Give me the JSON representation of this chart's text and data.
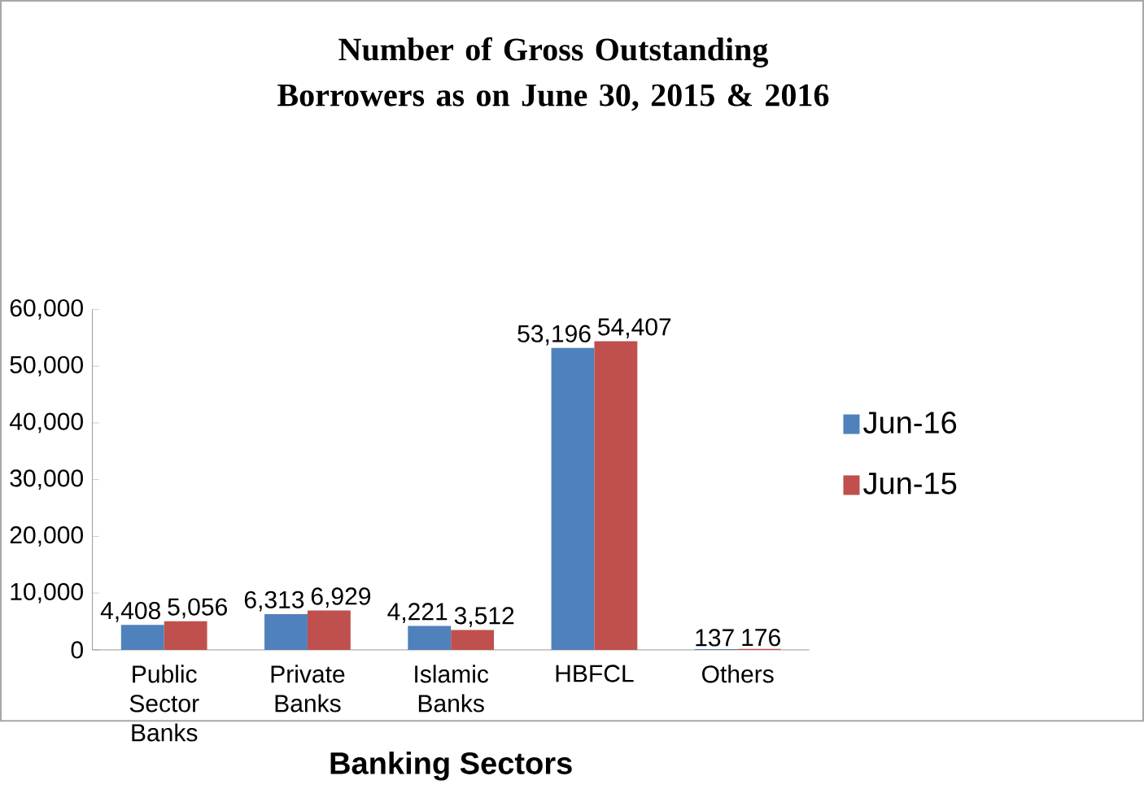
{
  "chart_data": {
    "type": "bar",
    "title": "Number of Gross Outstanding Borrowers as on June 30, 2015 & 2016",
    "xlabel": "Banking Sectors",
    "categories": [
      "Public Sector Banks",
      "Private Banks",
      "Islamic Banks",
      "HBFCL",
      "Others"
    ],
    "series": [
      {
        "name": "Jun-16",
        "color": "#4f81bd",
        "values": [
          4408,
          6313,
          4221,
          53196,
          137
        ],
        "value_labels": [
          "4,408",
          "6,313",
          "4,221",
          "53,196",
          "137"
        ]
      },
      {
        "name": "Jun-15",
        "color": "#c0504d",
        "values": [
          5056,
          6929,
          3512,
          54407,
          176
        ],
        "value_labels": [
          "5,056",
          "6,929",
          "3,512",
          "54,407",
          "176"
        ]
      }
    ],
    "ylim": [
      0,
      60000
    ],
    "yticks": [
      0,
      {
        "value": 10000,
        "label": "10,000"
      },
      {
        "value": 20000,
        "label": "20,000"
      },
      {
        "value": 30000,
        "label": "30,000"
      },
      {
        "value": 40000,
        "label": "40,000"
      },
      {
        "value": 50000,
        "label": "50,000"
      },
      {
        "value": 60000,
        "label": "60,000"
      }
    ],
    "legend": "right",
    "grid": false
  }
}
